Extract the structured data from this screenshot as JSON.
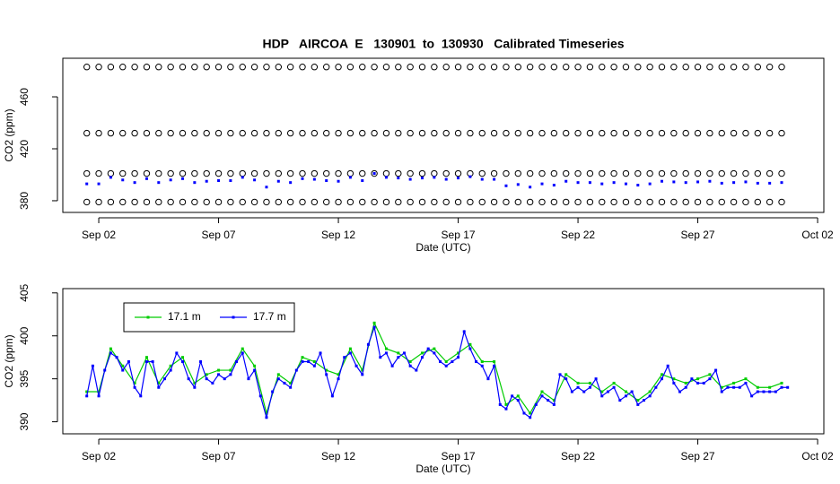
{
  "chart_data": [
    {
      "type": "scatter",
      "title": "HDP   AIRCOA  E   130901  to  130930   Calibrated Timeseries",
      "x_label": "Date (UTC)",
      "y_label": "CO2 (ppm)",
      "xlim": [
        0.5,
        32.26
      ],
      "xticks": [
        {
          "value": 2,
          "label": "Sep 02"
        },
        {
          "value": 7,
          "label": "Sep 07"
        },
        {
          "value": 12,
          "label": "Sep 12"
        },
        {
          "value": 17,
          "label": "Sep 17"
        },
        {
          "value": 22,
          "label": "Sep 22"
        },
        {
          "value": 27,
          "label": "Sep 27"
        },
        {
          "value": 32,
          "label": "Oct 02"
        }
      ],
      "ylim": [
        371,
        489.7
      ],
      "yticks": [
        380,
        420,
        460
      ],
      "x": [
        1.5,
        2,
        2.5,
        3,
        3.5,
        4,
        4.5,
        5,
        5.5,
        6,
        6.5,
        7,
        7.5,
        8,
        8.5,
        9,
        9.5,
        10,
        10.5,
        11,
        11.5,
        12,
        12.5,
        13,
        13.5,
        14,
        14.5,
        15,
        15.5,
        16,
        16.5,
        17,
        17.5,
        18,
        18.5,
        19,
        19.5,
        20,
        20.5,
        21,
        21.5,
        22,
        22.5,
        23,
        23.5,
        24,
        24.5,
        25,
        25.5,
        26,
        26.5,
        27,
        27.5,
        28,
        28.5,
        29,
        29.5,
        30,
        30.5
      ],
      "series": [
        {
          "color": "#000000",
          "marker": "circle",
          "values": [
            483,
            483,
            483,
            483,
            483,
            483,
            483,
            483,
            483,
            483,
            483,
            483,
            483,
            483,
            483,
            483,
            483,
            483,
            483,
            483,
            483,
            483,
            483,
            483,
            483,
            483,
            483,
            483,
            483,
            483,
            483,
            483,
            483,
            483,
            483,
            483,
            483,
            483,
            483,
            483,
            483,
            483,
            483,
            483,
            483,
            483,
            483,
            483,
            483,
            483,
            483,
            483,
            483,
            483,
            483,
            483,
            483,
            483,
            483
          ]
        },
        {
          "color": "#000000",
          "marker": "circle",
          "values": [
            432,
            432,
            432,
            432,
            432,
            432,
            432,
            432,
            432,
            432,
            432,
            432,
            432,
            432,
            432,
            432,
            432,
            432,
            432,
            432,
            432,
            432,
            432,
            432,
            432,
            432,
            432,
            432,
            432,
            432,
            432,
            432,
            432,
            432,
            432,
            432,
            432,
            432,
            432,
            432,
            432,
            432,
            432,
            432,
            432,
            432,
            432,
            432,
            432,
            432,
            432,
            432,
            432,
            432,
            432,
            432,
            432,
            432,
            432
          ]
        },
        {
          "color": "#000000",
          "marker": "circle",
          "values": [
            401,
            401,
            401,
            401,
            401,
            401,
            401,
            401,
            401,
            401,
            401,
            401,
            401,
            401,
            401,
            401,
            401,
            401,
            401,
            401,
            401,
            401,
            401,
            401,
            401,
            401,
            401,
            401,
            401,
            401,
            401,
            401,
            401,
            401,
            401,
            401,
            401,
            401,
            401,
            401,
            401,
            401,
            401,
            401,
            401,
            401,
            401,
            401,
            401,
            401,
            401,
            401,
            401,
            401,
            401,
            401,
            401,
            401,
            401
          ]
        },
        {
          "color": "#000000",
          "marker": "circle",
          "values": [
            379,
            379,
            379,
            379,
            379,
            379,
            379,
            379,
            379,
            379,
            379,
            379,
            379,
            379,
            379,
            379,
            379,
            379,
            379,
            379,
            379,
            379,
            379,
            379,
            379,
            379,
            379,
            379,
            379,
            379,
            379,
            379,
            379,
            379,
            379,
            379,
            379,
            379,
            379,
            379,
            379,
            379,
            379,
            379,
            379,
            379,
            379,
            379,
            379,
            379,
            379,
            379,
            379,
            379,
            379,
            379,
            379,
            379,
            379
          ]
        },
        {
          "color": "#0000ff",
          "marker": "square",
          "values": [
            393,
            393,
            398,
            396,
            394,
            397,
            394,
            396,
            397,
            394,
            395,
            395.5,
            395.5,
            398,
            396,
            390.5,
            395,
            394,
            397,
            396.5,
            395.5,
            395,
            398,
            395.5,
            401,
            398,
            397.5,
            396.5,
            397.5,
            398,
            396.5,
            397.5,
            398.5,
            396.5,
            396.5,
            391.5,
            392.5,
            390.5,
            393,
            392,
            395,
            394,
            394,
            393,
            394,
            393,
            392,
            393,
            395,
            394.5,
            394,
            394.5,
            395,
            393.5,
            394,
            394.5,
            393.5,
            393.5,
            394
          ]
        }
      ]
    },
    {
      "type": "line",
      "x_label": "Date (UTC)",
      "y_label": "CO2 (ppm)",
      "xlim": [
        0.5,
        32.26
      ],
      "xticks": [
        {
          "value": 2,
          "label": "Sep 02"
        },
        {
          "value": 7,
          "label": "Sep 07"
        },
        {
          "value": 12,
          "label": "Sep 12"
        },
        {
          "value": 17,
          "label": "Sep 17"
        },
        {
          "value": 22,
          "label": "Sep 22"
        },
        {
          "value": 27,
          "label": "Sep 27"
        },
        {
          "value": 32,
          "label": "Oct 02"
        }
      ],
      "ylim": [
        388.6,
        405.5
      ],
      "yticks": [
        390,
        395,
        400,
        405
      ],
      "legend": "top-left",
      "series": [
        {
          "name": "17.1 m",
          "color": "#00cc00",
          "x": [
            1.5,
            2,
            2.5,
            3,
            3.5,
            4,
            4.5,
            5,
            5.5,
            6,
            6.5,
            7,
            7.5,
            8,
            8.5,
            9,
            9.5,
            10,
            10.5,
            11,
            11.5,
            12,
            12.5,
            13,
            13.5,
            14,
            14.5,
            15,
            15.5,
            16,
            16.5,
            17,
            17.5,
            18,
            18.5,
            19,
            19.5,
            20,
            20.5,
            21,
            21.5,
            22,
            22.5,
            23,
            23.5,
            24,
            24.5,
            25,
            25.5,
            26,
            26.5,
            27,
            27.5,
            28,
            28.5,
            29,
            29.5,
            30,
            30.5
          ],
          "values": [
            393.5,
            393.5,
            398.5,
            396.5,
            394.5,
            397.5,
            394.5,
            396.5,
            397.5,
            394.5,
            395.5,
            396,
            396,
            398.5,
            396.5,
            391,
            395.5,
            394.5,
            397.5,
            397,
            396,
            395.5,
            398.5,
            396,
            401.5,
            398.5,
            398,
            397,
            398,
            398.5,
            397,
            398,
            399,
            397,
            397,
            392,
            393,
            391,
            393.5,
            392.5,
            395.5,
            394.5,
            394.5,
            393.5,
            394.5,
            393.5,
            392.5,
            393.5,
            395.5,
            395,
            394.5,
            395,
            395.5,
            394,
            394.5,
            395,
            394,
            394,
            394.5
          ]
        },
        {
          "name": "17.7 m",
          "color": "#0000ff",
          "x": [
            1.5,
            1.75,
            2,
            2.25,
            2.5,
            2.75,
            3,
            3.25,
            3.5,
            3.75,
            4,
            4.25,
            4.5,
            4.75,
            5,
            5.25,
            5.5,
            5.75,
            6,
            6.25,
            6.5,
            6.75,
            7,
            7.25,
            7.5,
            7.75,
            8,
            8.25,
            8.5,
            8.75,
            9,
            9.25,
            9.5,
            9.75,
            10,
            10.25,
            10.5,
            10.75,
            11,
            11.25,
            11.5,
            11.75,
            12,
            12.25,
            12.5,
            12.75,
            13,
            13.25,
            13.5,
            13.75,
            14,
            14.25,
            14.5,
            14.75,
            15,
            15.25,
            15.5,
            15.75,
            16,
            16.25,
            16.5,
            16.75,
            17,
            17.25,
            17.5,
            17.75,
            18,
            18.25,
            18.5,
            18.75,
            19,
            19.25,
            19.5,
            19.75,
            20,
            20.25,
            20.5,
            20.75,
            21,
            21.25,
            21.5,
            21.75,
            22,
            22.25,
            22.5,
            22.75,
            23,
            23.25,
            23.5,
            23.75,
            24,
            24.25,
            24.5,
            24.75,
            25,
            25.25,
            25.5,
            25.75,
            26,
            26.25,
            26.5,
            26.75,
            27,
            27.25,
            27.5,
            27.75,
            28,
            28.25,
            28.5,
            28.75,
            29,
            29.25,
            29.5,
            29.75,
            30,
            30.25,
            30.5,
            30.75
          ],
          "values": [
            393,
            396.5,
            393,
            396,
            398,
            397.5,
            396,
            397,
            394,
            393,
            397,
            397,
            394,
            395,
            396,
            398,
            397,
            395,
            394,
            397,
            395,
            394.5,
            395.5,
            395,
            395.5,
            397,
            398,
            395,
            396,
            393,
            390.5,
            393.5,
            395,
            394.5,
            394,
            396,
            397,
            397,
            396.5,
            398,
            395.5,
            393,
            395,
            397.5,
            398,
            396.5,
            395.5,
            399,
            401,
            397.5,
            398,
            396.5,
            397.5,
            398,
            396.5,
            396,
            397.5,
            398.5,
            398,
            397,
            396.5,
            397,
            397.5,
            400.5,
            398.5,
            397,
            396.5,
            395,
            396.5,
            392,
            391.5,
            393,
            392.5,
            391,
            390.5,
            392,
            393,
            392.5,
            392,
            395.5,
            395,
            393.5,
            394,
            393.5,
            394,
            395,
            393,
            393.5,
            394,
            392.5,
            393,
            393.5,
            392,
            392.5,
            393,
            394,
            395,
            396.5,
            394.5,
            393.5,
            394,
            395,
            394.5,
            394.5,
            395,
            396,
            393.5,
            394,
            394,
            394,
            394.5,
            393,
            393.5,
            393.5,
            393.5,
            393.5,
            394,
            394
          ]
        }
      ]
    }
  ]
}
